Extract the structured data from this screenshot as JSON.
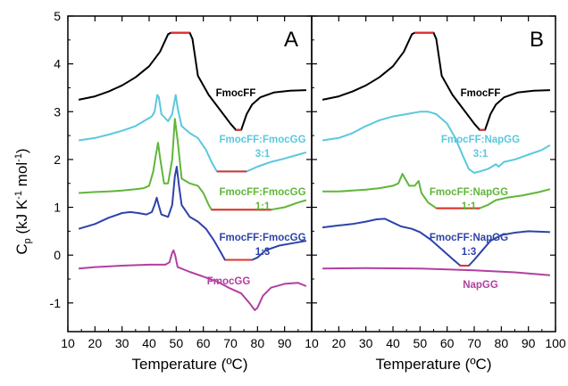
{
  "chart_data": [
    {
      "panel": "A",
      "type": "line",
      "xlabel": "Temperature (ºC)",
      "ylabel": "C_p (kJ K^-1 mol^-1)",
      "xlim": [
        10,
        100
      ],
      "ylim": [
        -1.6,
        5
      ],
      "x_ticks": [
        "10",
        "20",
        "30",
        "40",
        "50",
        "60",
        "70",
        "80",
        "90"
      ],
      "y_ticks": [
        "-1",
        "0",
        "1",
        "2",
        "3",
        "4",
        "5"
      ],
      "series": [
        {
          "label": "FmocFF",
          "color": "#000000",
          "points": [
            [
              14,
              3.25
            ],
            [
              20,
              3.32
            ],
            [
              25,
              3.42
            ],
            [
              30,
              3.55
            ],
            [
              35,
              3.72
            ],
            [
              40,
              3.95
            ],
            [
              44,
              4.25
            ],
            [
              47,
              4.62
            ],
            [
              48,
              4.65
            ],
            [
              55,
              4.65
            ],
            [
              56,
              4.52
            ],
            [
              58,
              3.75
            ],
            [
              62,
              3.35
            ],
            [
              66,
              3.05
            ],
            [
              70,
              2.75
            ],
            [
              72,
              2.62
            ],
            [
              74,
              2.62
            ],
            [
              76,
              2.95
            ],
            [
              78,
              3.15
            ],
            [
              81,
              3.3
            ],
            [
              86,
              3.4
            ],
            [
              92,
              3.44
            ],
            [
              98,
              3.45
            ]
          ],
          "baseline_segments": [
            [
              [
                48,
                4.65
              ],
              [
                55,
                4.65
              ]
            ],
            [
              [
                72,
                2.62
              ],
              [
                74,
                2.62
              ]
            ]
          ]
        },
        {
          "label": "FmocFF:FmocGG",
          "sublabel": "3:1",
          "color": "#5BC8DD",
          "points": [
            [
              14,
              2.4
            ],
            [
              20,
              2.45
            ],
            [
              25,
              2.52
            ],
            [
              30,
              2.6
            ],
            [
              35,
              2.7
            ],
            [
              38,
              2.8
            ],
            [
              41,
              2.9
            ],
            [
              42,
              3.0
            ],
            [
              43,
              3.35
            ],
            [
              43.6,
              3.3
            ],
            [
              44.5,
              2.95
            ],
            [
              47,
              2.8
            ],
            [
              48.5,
              2.95
            ],
            [
              49.8,
              3.35
            ],
            [
              50.6,
              3.05
            ],
            [
              52,
              2.7
            ],
            [
              55,
              2.55
            ],
            [
              58,
              2.45
            ],
            [
              61,
              2.2
            ],
            [
              63,
              1.95
            ],
            [
              65,
              1.75
            ],
            [
              72,
              1.75
            ],
            [
              76,
              1.75
            ],
            [
              80,
              1.85
            ],
            [
              85,
              1.95
            ],
            [
              90,
              2.02
            ],
            [
              95,
              2.1
            ],
            [
              98,
              2.15
            ]
          ],
          "baseline_segments": [
            [
              [
                65,
                1.75
              ],
              [
                76,
                1.75
              ]
            ]
          ]
        },
        {
          "label": "FmocFF:FmocGG",
          "sublabel": "1:1",
          "color": "#60B63A",
          "points": [
            [
              14,
              1.3
            ],
            [
              20,
              1.32
            ],
            [
              25,
              1.33
            ],
            [
              30,
              1.35
            ],
            [
              35,
              1.38
            ],
            [
              38,
              1.4
            ],
            [
              40,
              1.45
            ],
            [
              41.5,
              1.75
            ],
            [
              42.5,
              2.1
            ],
            [
              43.3,
              2.35
            ],
            [
              44,
              2.05
            ],
            [
              45.5,
              1.5
            ],
            [
              47,
              1.5
            ],
            [
              48.5,
              2.0
            ],
            [
              49.5,
              2.85
            ],
            [
              50.5,
              2.4
            ],
            [
              52,
              1.6
            ],
            [
              55,
              1.5
            ],
            [
              58,
              1.45
            ],
            [
              60,
              1.3
            ],
            [
              62,
              1.05
            ],
            [
              63,
              0.95
            ],
            [
              70,
              0.95
            ],
            [
              80,
              0.95
            ],
            [
              85,
              0.95
            ],
            [
              90,
              1.0
            ],
            [
              95,
              1.1
            ],
            [
              98,
              1.15
            ]
          ],
          "baseline_segments": [
            [
              [
                63,
                0.95
              ],
              [
                85,
                0.95
              ]
            ]
          ]
        },
        {
          "label": "FmocFF:FmocGG",
          "sublabel": "1:3",
          "color": "#2E43A8",
          "points": [
            [
              14,
              0.55
            ],
            [
              20,
              0.65
            ],
            [
              25,
              0.78
            ],
            [
              30,
              0.88
            ],
            [
              33,
              0.9
            ],
            [
              36,
              0.88
            ],
            [
              39,
              0.85
            ],
            [
              41,
              0.9
            ],
            [
              42,
              1.05
            ],
            [
              42.8,
              1.2
            ],
            [
              43.5,
              1.05
            ],
            [
              44.5,
              0.85
            ],
            [
              47,
              0.8
            ],
            [
              48.5,
              1.05
            ],
            [
              49.5,
              1.65
            ],
            [
              50.2,
              1.85
            ],
            [
              51,
              1.45
            ],
            [
              52,
              1.05
            ],
            [
              55,
              0.8
            ],
            [
              58,
              0.7
            ],
            [
              61,
              0.55
            ],
            [
              64,
              0.3
            ],
            [
              66,
              0.1
            ],
            [
              68,
              -0.1
            ],
            [
              74,
              -0.1
            ],
            [
              78,
              -0.1
            ],
            [
              80,
              -0.05
            ],
            [
              83,
              0.1
            ],
            [
              88,
              0.2
            ],
            [
              93,
              0.25
            ],
            [
              98,
              0.3
            ]
          ],
          "baseline_segments": [
            [
              [
                68,
                -0.1
              ],
              [
                78,
                -0.1
              ]
            ]
          ]
        },
        {
          "label": "FmocGG",
          "color": "#B33FA0",
          "points": [
            [
              14,
              -0.28
            ],
            [
              20,
              -0.25
            ],
            [
              30,
              -0.22
            ],
            [
              40,
              -0.2
            ],
            [
              46,
              -0.2
            ],
            [
              47.5,
              -0.15
            ],
            [
              48.5,
              0.05
            ],
            [
              49,
              0.1
            ],
            [
              49.6,
              0.0
            ],
            [
              50.5,
              -0.25
            ],
            [
              55,
              -0.35
            ],
            [
              60,
              -0.45
            ],
            [
              65,
              -0.55
            ],
            [
              70,
              -0.7
            ],
            [
              74,
              -0.8
            ],
            [
              77,
              -1.0
            ],
            [
              79,
              -1.15
            ],
            [
              80,
              -1.1
            ],
            [
              82,
              -0.85
            ],
            [
              85,
              -0.68
            ],
            [
              90,
              -0.6
            ],
            [
              95,
              -0.58
            ],
            [
              98,
              -0.65
            ]
          ],
          "baseline_segments": []
        }
      ]
    },
    {
      "panel": "B",
      "type": "line",
      "xlabel": "Temperature (ºC)",
      "xlim": [
        10,
        100
      ],
      "ylim": [
        -1.6,
        5
      ],
      "x_ticks": [
        "10",
        "20",
        "30",
        "40",
        "50",
        "60",
        "70",
        "80",
        "90",
        "100"
      ],
      "series": [
        {
          "label": "FmocFF",
          "color": "#000000",
          "points": [
            [
              14,
              3.25
            ],
            [
              20,
              3.32
            ],
            [
              25,
              3.42
            ],
            [
              30,
              3.55
            ],
            [
              35,
              3.72
            ],
            [
              40,
              3.95
            ],
            [
              44,
              4.25
            ],
            [
              47,
              4.62
            ],
            [
              48,
              4.65
            ],
            [
              55,
              4.65
            ],
            [
              56,
              4.52
            ],
            [
              58,
              3.75
            ],
            [
              62,
              3.35
            ],
            [
              66,
              3.05
            ],
            [
              70,
              2.75
            ],
            [
              72,
              2.62
            ],
            [
              74,
              2.62
            ],
            [
              76,
              2.95
            ],
            [
              78,
              3.15
            ],
            [
              81,
              3.3
            ],
            [
              86,
              3.4
            ],
            [
              92,
              3.44
            ],
            [
              98,
              3.45
            ]
          ],
          "baseline_segments": [
            [
              [
                48,
                4.65
              ],
              [
                55,
                4.65
              ]
            ],
            [
              [
                72,
                2.62
              ],
              [
                74,
                2.62
              ]
            ]
          ]
        },
        {
          "label": "FmocFF:NapGG",
          "sublabel": "3:1",
          "color": "#5BC8DD",
          "points": [
            [
              14,
              2.4
            ],
            [
              20,
              2.45
            ],
            [
              25,
              2.55
            ],
            [
              30,
              2.7
            ],
            [
              35,
              2.82
            ],
            [
              40,
              2.9
            ],
            [
              45,
              2.95
            ],
            [
              50,
              3.0
            ],
            [
              53,
              3.0
            ],
            [
              56,
              2.95
            ],
            [
              60,
              2.75
            ],
            [
              63,
              2.45
            ],
            [
              66,
              2.05
            ],
            [
              68,
              1.8
            ],
            [
              70,
              1.72
            ],
            [
              72,
              1.75
            ],
            [
              75,
              1.8
            ],
            [
              78,
              1.9
            ],
            [
              79,
              1.85
            ],
            [
              81,
              1.95
            ],
            [
              85,
              2.0
            ],
            [
              90,
              2.1
            ],
            [
              95,
              2.2
            ],
            [
              98,
              2.3
            ]
          ],
          "baseline_segments": []
        },
        {
          "label": "FmocFF:NapGG",
          "sublabel": "1:1",
          "color": "#60B63A",
          "points": [
            [
              14,
              1.33
            ],
            [
              20,
              1.33
            ],
            [
              25,
              1.35
            ],
            [
              30,
              1.37
            ],
            [
              35,
              1.4
            ],
            [
              40,
              1.45
            ],
            [
              42,
              1.5
            ],
            [
              43.5,
              1.7
            ],
            [
              44.5,
              1.6
            ],
            [
              46,
              1.45
            ],
            [
              48,
              1.45
            ],
            [
              49.5,
              1.55
            ],
            [
              50.5,
              1.3
            ],
            [
              53,
              1.1
            ],
            [
              56,
              0.98
            ],
            [
              65,
              0.98
            ],
            [
              72,
              0.98
            ],
            [
              75,
              1.05
            ],
            [
              78,
              1.15
            ],
            [
              82,
              1.2
            ],
            [
              88,
              1.25
            ],
            [
              94,
              1.32
            ],
            [
              98,
              1.38
            ]
          ],
          "baseline_segments": [
            [
              [
                56,
                0.98
              ],
              [
                72,
                0.98
              ]
            ]
          ]
        },
        {
          "label": "FmocFF:NapGG",
          "sublabel": "1:3",
          "color": "#2E43A8",
          "points": [
            [
              14,
              0.58
            ],
            [
              20,
              0.62
            ],
            [
              25,
              0.65
            ],
            [
              30,
              0.7
            ],
            [
              34,
              0.75
            ],
            [
              37,
              0.76
            ],
            [
              40,
              0.68
            ],
            [
              43,
              0.6
            ],
            [
              47,
              0.55
            ],
            [
              50,
              0.48
            ],
            [
              54,
              0.32
            ],
            [
              58,
              0.12
            ],
            [
              62,
              -0.08
            ],
            [
              64,
              -0.18
            ],
            [
              65,
              -0.22
            ],
            [
              68,
              -0.22
            ],
            [
              70,
              -0.1
            ],
            [
              73,
              0.1
            ],
            [
              76,
              0.3
            ],
            [
              80,
              0.42
            ],
            [
              85,
              0.47
            ],
            [
              90,
              0.5
            ],
            [
              98,
              0.48
            ]
          ],
          "baseline_segments": [
            [
              [
                64.5,
                -0.22
              ],
              [
                68,
                -0.22
              ]
            ]
          ]
        },
        {
          "label": "NapGG",
          "color": "#B33FA0",
          "points": [
            [
              14,
              -0.28
            ],
            [
              30,
              -0.27
            ],
            [
              50,
              -0.28
            ],
            [
              70,
              -0.32
            ],
            [
              85,
              -0.36
            ],
            [
              98,
              -0.42
            ]
          ],
          "baseline_segments": []
        }
      ]
    }
  ],
  "labels": {
    "panel_a": "A",
    "panel_b": "B",
    "ylabel_main": "C",
    "ylabel_sub": "p",
    "ylabel_open": " (kJ K",
    "ylabel_exp1": "-1",
    "ylabel_mid": " mol",
    "ylabel_exp2": "-1",
    "ylabel_close": ")"
  },
  "annotation_color": "#E53030"
}
